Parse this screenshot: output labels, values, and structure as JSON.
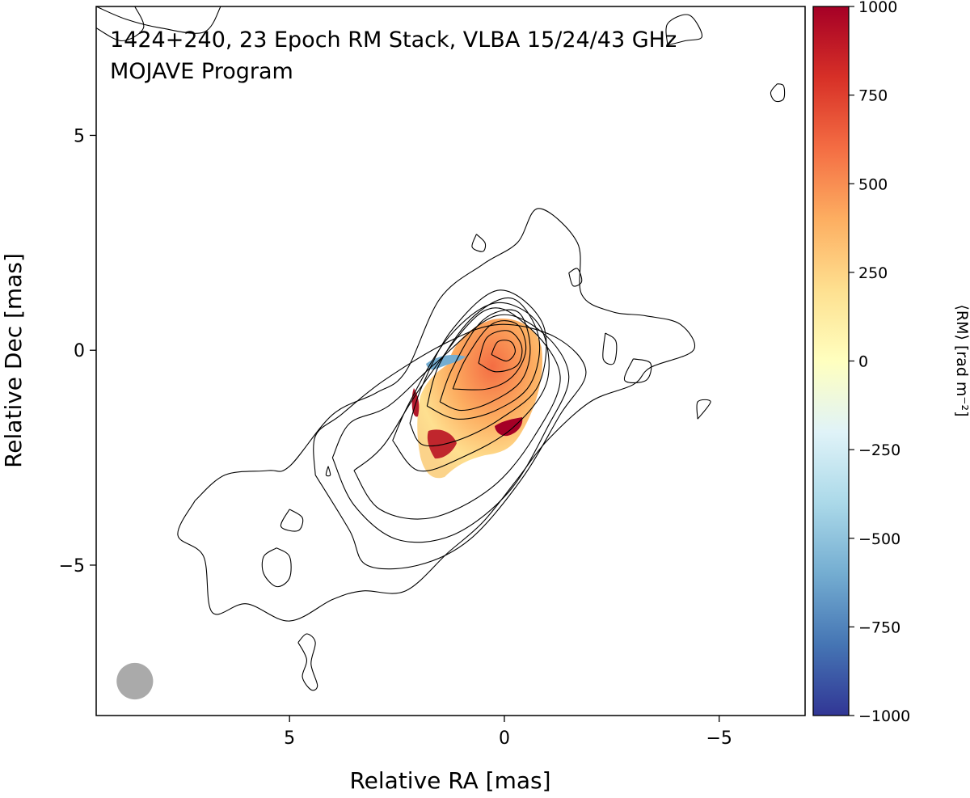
{
  "chart_data": {
    "type": "heatmap",
    "title_lines": [
      "1424+240, 23 Epoch RM Stack, VLBA 15/24/43 GHz",
      "MOJAVE Program"
    ],
    "xlabel": "Relative RA [mas]",
    "ylabel": "Relative Dec [mas]",
    "xlim": [
      9.5,
      -7
    ],
    "ylim": [
      -8.5,
      8
    ],
    "x_inverted": true,
    "xticks": [
      5,
      0,
      -5
    ],
    "xtick_labels": [
      "5",
      "0",
      "−5"
    ],
    "yticks": [
      5,
      0,
      -5
    ],
    "ytick_labels": [
      "5",
      "0",
      "−5"
    ],
    "colorbar": {
      "label": "⟨RM⟩ [rad m⁻²]",
      "range": [
        -1000,
        1000
      ],
      "ticks": [
        1000,
        750,
        500,
        250,
        0,
        -250,
        -500,
        -750,
        -1000
      ],
      "tick_labels": [
        "1000",
        "750",
        "500",
        "250",
        "0",
        "−250",
        "−500",
        "−750",
        "−1000"
      ],
      "colormap": [
        "#313695",
        "#4575b4",
        "#74add1",
        "#abd9e9",
        "#e0f3f8",
        "#ffffbf",
        "#fee090",
        "#fdae61",
        "#f46d43",
        "#d73027",
        "#a50026"
      ],
      "placement": "right"
    },
    "beam": {
      "x": 8.6,
      "y": -7.7,
      "diameter": 0.85,
      "color": "#aaaaaa"
    },
    "rm_peak": {
      "x": 0.1,
      "y": 0.0,
      "rm": 450
    },
    "contours": [
      {
        "level": 1,
        "points": [
          [
            7.2,
            -3.5
          ],
          [
            6.5,
            -2.9
          ],
          [
            5.5,
            -2.8
          ],
          [
            5.0,
            -2.7
          ],
          [
            4.0,
            -1.5
          ],
          [
            3.0,
            -1.0
          ],
          [
            2.3,
            -0.5
          ],
          [
            1.5,
            1.2
          ],
          [
            0.5,
            2.0
          ],
          [
            -0.3,
            2.5
          ],
          [
            -0.8,
            3.3
          ],
          [
            -1.7,
            2.5
          ],
          [
            -1.8,
            1.3
          ],
          [
            -2.5,
            0.9
          ],
          [
            -3.3,
            0.8
          ],
          [
            -4.1,
            0.6
          ],
          [
            -4.4,
            0.0
          ],
          [
            -3.4,
            -0.4
          ],
          [
            -3.0,
            -0.8
          ],
          [
            -2.0,
            -1.2
          ],
          [
            -1.0,
            -2.1
          ],
          [
            -0.3,
            -3.0
          ],
          [
            0.5,
            -4.0
          ],
          [
            1.3,
            -4.7
          ],
          [
            2.3,
            -5.6
          ],
          [
            3.3,
            -5.6
          ],
          [
            4.0,
            -5.8
          ],
          [
            5.0,
            -6.3
          ],
          [
            6.0,
            -5.9
          ],
          [
            6.8,
            -6.1
          ],
          [
            7.0,
            -4.8
          ],
          [
            7.6,
            -4.3
          ],
          [
            7.2,
            -3.5
          ]
        ]
      },
      {
        "level": 2,
        "points": [
          [
            4.4,
            -2.9
          ],
          [
            4.4,
            -2.0
          ],
          [
            3.8,
            -1.5
          ],
          [
            2.8,
            -0.7
          ],
          [
            1.3,
            0.2
          ],
          [
            0.1,
            0.6
          ],
          [
            -1.2,
            0.3
          ],
          [
            -1.9,
            -0.5
          ],
          [
            -1.3,
            -1.5
          ],
          [
            -0.4,
            -3.0
          ],
          [
            0.8,
            -4.4
          ],
          [
            2.0,
            -5.0
          ],
          [
            3.2,
            -5.0
          ],
          [
            3.6,
            -4.2
          ],
          [
            4.4,
            -2.9
          ]
        ]
      },
      {
        "level": 3,
        "points": [
          [
            4.0,
            -2.5
          ],
          [
            3.6,
            -1.7
          ],
          [
            2.7,
            -1.3
          ],
          [
            1.6,
            -0.3
          ],
          [
            0.2,
            0.8
          ],
          [
            -0.9,
            0.4
          ],
          [
            -1.5,
            -0.6
          ],
          [
            -1.0,
            -1.8
          ],
          [
            -0.1,
            -3.3
          ],
          [
            1.2,
            -4.3
          ],
          [
            2.5,
            -4.4
          ],
          [
            3.5,
            -3.6
          ],
          [
            4.0,
            -2.5
          ]
        ]
      },
      {
        "level": 4,
        "points": [
          [
            3.5,
            -2.8
          ],
          [
            2.8,
            -2.2
          ],
          [
            1.9,
            -0.8
          ],
          [
            0.5,
            0.9
          ],
          [
            -0.5,
            0.6
          ],
          [
            -1.3,
            -0.6
          ],
          [
            -0.7,
            -2.0
          ],
          [
            0.3,
            -3.2
          ],
          [
            1.7,
            -3.9
          ],
          [
            2.9,
            -3.7
          ],
          [
            3.5,
            -2.8
          ]
        ]
      },
      {
        "level": 5,
        "points": [
          [
            2.6,
            -2.1
          ],
          [
            2.2,
            -1.2
          ],
          [
            1.3,
            0.3
          ],
          [
            0.2,
            1.1
          ],
          [
            -0.8,
            0.6
          ],
          [
            -1.0,
            -0.7
          ],
          [
            -0.2,
            -1.8
          ],
          [
            1.0,
            -2.5
          ],
          [
            2.0,
            -2.8
          ],
          [
            2.6,
            -2.1
          ]
        ]
      },
      {
        "level": 6,
        "points": [
          [
            2.2,
            -1.7
          ],
          [
            1.9,
            -0.8
          ],
          [
            1.2,
            0.5
          ],
          [
            0.1,
            1.4
          ],
          [
            -0.9,
            0.6
          ],
          [
            -0.8,
            -0.8
          ],
          [
            0.1,
            -1.6
          ],
          [
            1.1,
            -2.1
          ],
          [
            1.9,
            -2.2
          ],
          [
            2.2,
            -1.7
          ]
        ]
      },
      {
        "level": 7,
        "points": [
          [
            1.8,
            -1.3
          ],
          [
            1.5,
            -0.3
          ],
          [
            0.7,
            0.8
          ],
          [
            -0.2,
            1.2
          ],
          [
            -0.8,
            0.3
          ],
          [
            -0.6,
            -0.8
          ],
          [
            0.2,
            -1.4
          ],
          [
            1.1,
            -1.6
          ],
          [
            1.8,
            -1.3
          ]
        ]
      },
      {
        "level": 8,
        "points": [
          [
            1.5,
            -1.2
          ],
          [
            1.2,
            -0.4
          ],
          [
            0.5,
            0.7
          ],
          [
            -0.3,
            0.9
          ],
          [
            -0.6,
            0.1
          ],
          [
            -0.4,
            -0.7
          ],
          [
            0.3,
            -1.2
          ],
          [
            1.0,
            -1.4
          ],
          [
            1.5,
            -1.2
          ]
        ]
      },
      {
        "level": 9,
        "points": [
          [
            1.2,
            -0.9
          ],
          [
            0.9,
            -0.2
          ],
          [
            0.3,
            0.6
          ],
          [
            -0.3,
            0.6
          ],
          [
            -0.5,
            0.0
          ],
          [
            -0.2,
            -0.6
          ],
          [
            0.4,
            -0.9
          ],
          [
            1.2,
            -0.9
          ]
        ]
      },
      {
        "level": 10,
        "points": [
          [
            0.6,
            -0.3
          ],
          [
            0.4,
            0.3
          ],
          [
            -0.1,
            0.45
          ],
          [
            -0.4,
            0.1
          ],
          [
            -0.3,
            -0.35
          ],
          [
            0.2,
            -0.5
          ],
          [
            0.6,
            -0.3
          ]
        ]
      },
      {
        "level": 11,
        "points": [
          [
            0.3,
            -0.1
          ],
          [
            0.15,
            0.2
          ],
          [
            -0.15,
            0.2
          ],
          [
            -0.25,
            -0.05
          ],
          [
            -0.05,
            -0.25
          ],
          [
            0.3,
            -0.1
          ]
        ]
      },
      {
        "level": 1,
        "points": [
          [
            5.3,
            -4.6
          ],
          [
            5.0,
            -4.8
          ],
          [
            5.0,
            -5.3
          ],
          [
            5.3,
            -5.5
          ],
          [
            5.6,
            -5.2
          ],
          [
            5.6,
            -4.8
          ],
          [
            5.3,
            -4.6
          ]
        ]
      },
      {
        "level": 1,
        "points": [
          [
            5.0,
            -3.7
          ],
          [
            4.7,
            -3.9
          ],
          [
            4.8,
            -4.2
          ],
          [
            5.2,
            -4.1
          ],
          [
            5.0,
            -3.7
          ]
        ]
      },
      {
        "level": 1,
        "points": [
          [
            -1.5,
            1.8
          ],
          [
            -1.6,
            1.5
          ],
          [
            -1.8,
            1.6
          ],
          [
            -1.7,
            1.9
          ],
          [
            -1.5,
            1.8
          ]
        ]
      },
      {
        "level": 1,
        "points": [
          [
            0.65,
            2.7
          ],
          [
            0.45,
            2.5
          ],
          [
            0.5,
            2.3
          ],
          [
            0.75,
            2.4
          ],
          [
            0.65,
            2.7
          ]
        ]
      },
      {
        "level": 1,
        "points": [
          [
            -3.0,
            -0.2
          ],
          [
            -2.8,
            -0.7
          ],
          [
            -3.3,
            -0.7
          ],
          [
            -3.4,
            -0.3
          ],
          [
            -3.0,
            -0.2
          ]
        ]
      },
      {
        "level": 1,
        "points": [
          [
            -2.35,
            0.4
          ],
          [
            -2.3,
            -0.2
          ],
          [
            -2.55,
            -0.3
          ],
          [
            -2.6,
            0.2
          ],
          [
            -2.35,
            0.4
          ]
        ]
      },
      {
        "level": 1,
        "points": [
          [
            -4.5,
            -1.6
          ],
          [
            -4.5,
            -1.2
          ],
          [
            -4.8,
            -1.2
          ],
          [
            -4.5,
            -1.6
          ]
        ]
      },
      {
        "level": 1,
        "points": [
          [
            4.8,
            -6.8
          ],
          [
            4.6,
            -7.2
          ],
          [
            4.7,
            -7.6
          ],
          [
            4.5,
            -7.9
          ],
          [
            4.35,
            -7.8
          ],
          [
            4.5,
            -7.3
          ],
          [
            4.4,
            -6.8
          ],
          [
            4.6,
            -6.6
          ],
          [
            4.8,
            -6.8
          ]
        ]
      },
      {
        "level": 1,
        "points": [
          [
            -6.35,
            6.2
          ],
          [
            -6.2,
            6.0
          ],
          [
            -6.3,
            5.8
          ],
          [
            -6.5,
            5.85
          ],
          [
            -6.5,
            6.15
          ],
          [
            -6.35,
            6.2
          ]
        ]
      },
      {
        "level": 1,
        "points": [
          [
            -3.8,
            7.1
          ],
          [
            -3.8,
            7.6
          ],
          [
            -4.3,
            7.8
          ],
          [
            -4.6,
            7.3
          ],
          [
            -4.2,
            7.2
          ],
          [
            -3.8,
            7.1
          ]
        ]
      },
      {
        "level": 1,
        "points": [
          [
            4.1,
            -2.7
          ],
          [
            4.05,
            -2.9
          ],
          [
            4.15,
            -2.9
          ],
          [
            4.1,
            -2.7
          ]
        ]
      },
      {
        "level": 1,
        "points": [
          [
            9.5,
            8.0
          ],
          [
            8.8,
            7.7
          ],
          [
            8.0,
            7.5
          ],
          [
            7.0,
            7.4
          ],
          [
            6.6,
            8.0
          ]
        ]
      },
      {
        "level": 1,
        "points": [
          [
            9.5,
            7.5
          ],
          [
            8.9,
            7.2
          ],
          [
            8.4,
            7.5
          ],
          [
            8.6,
            8.0
          ]
        ]
      }
    ]
  }
}
